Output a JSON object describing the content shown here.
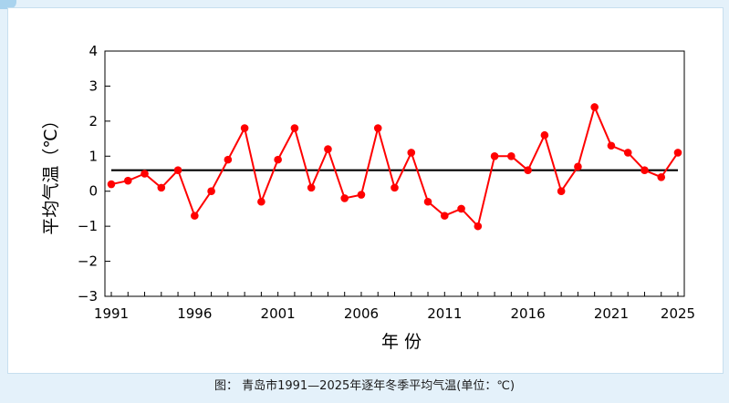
{
  "caption": "图： 青岛市1991—2025年逐年冬季平均气温(单位：℃)",
  "chart_data": {
    "type": "line",
    "title": "",
    "xlabel": "年 份",
    "ylabel": "平均气温（℃）",
    "ylim": [
      -3,
      4
    ],
    "xlim": [
      1991,
      2025
    ],
    "x_ticks": [
      "1991",
      "1996",
      "2001",
      "2006",
      "2011",
      "2016",
      "2021",
      "2025"
    ],
    "y_ticks": [
      "4",
      "3",
      "2",
      "1",
      "0",
      "−1",
      "−2",
      "−3"
    ],
    "series": [
      {
        "color": "#ff0000",
        "marker": "circle",
        "x": [
          1991,
          1992,
          1993,
          1994,
          1995,
          1996,
          1997,
          1998,
          1999,
          2000,
          2001,
          2002,
          2003,
          2004,
          2005,
          2006,
          2007,
          2008,
          2009,
          2010,
          2011,
          2012,
          2013,
          2014,
          2015,
          2016,
          2017,
          2018,
          2019,
          2020,
          2021,
          2022,
          2023,
          2024,
          2025
        ],
        "values": [
          0.2,
          0.3,
          0.5,
          0.1,
          0.6,
          -0.7,
          0.0,
          0.9,
          1.8,
          -0.3,
          0.9,
          1.8,
          0.1,
          1.2,
          -0.2,
          -0.1,
          1.8,
          0.1,
          1.1,
          -0.3,
          -0.7,
          -0.5,
          -1.0,
          1.0,
          1.0,
          0.6,
          1.6,
          0.0,
          0.7,
          2.4,
          1.3,
          1.1,
          0.6,
          0.4,
          1.1
        ]
      },
      {
        "color": "#000000",
        "x": [
          1991,
          2025
        ],
        "values": [
          0.6,
          0.6
        ]
      }
    ],
    "grid": false,
    "legend": "none"
  }
}
